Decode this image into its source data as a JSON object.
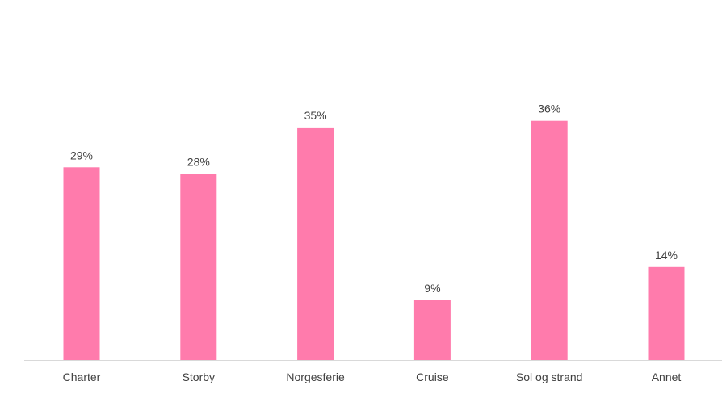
{
  "chart_data": {
    "type": "bar",
    "categories": [
      "Charter",
      "Storby",
      "Norgesferie",
      "Cruise",
      "Sol og strand",
      "Annet"
    ],
    "values": [
      29,
      28,
      35,
      9,
      36,
      14
    ],
    "data_labels": [
      "29%",
      "28%",
      "35%",
      "9%",
      "36%",
      "14%"
    ],
    "value_unit": "%",
    "title": "",
    "xlabel": "",
    "ylabel": "",
    "ylim": [
      0,
      40
    ],
    "grid": false,
    "legend": "none",
    "bar_color": "#FF7BAC",
    "axis_color": "#D9D9D9",
    "text_color": "#404040"
  }
}
